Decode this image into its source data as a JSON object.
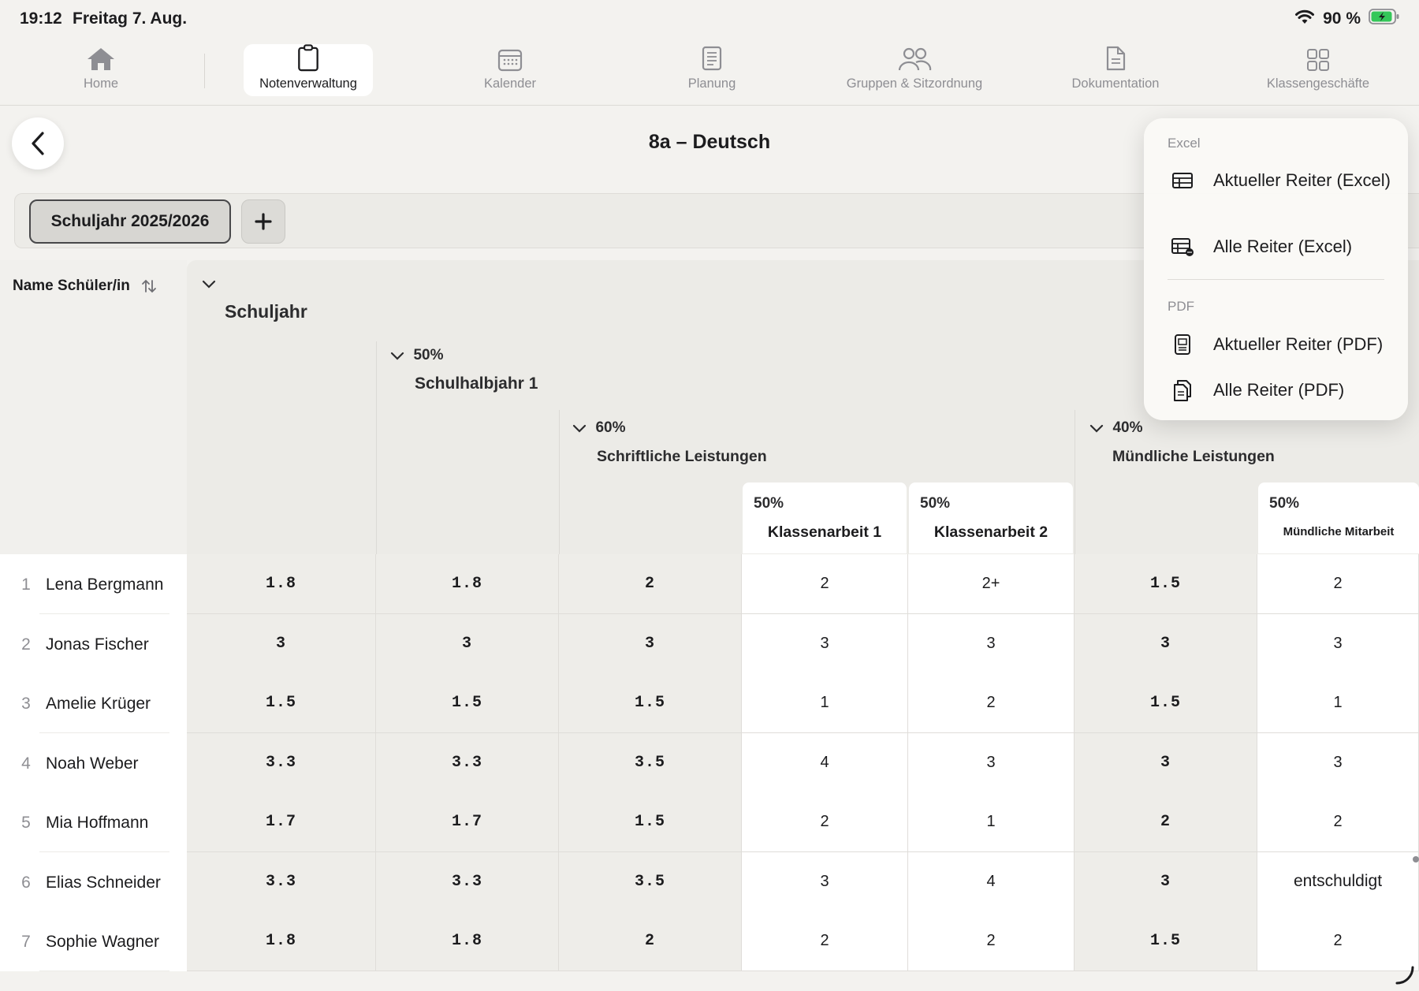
{
  "status": {
    "time": "19:12",
    "date": "Freitag 7. Aug.",
    "battery": "90 %"
  },
  "tabs": [
    {
      "label": "Home",
      "icon": "house-icon"
    },
    {
      "label": "Notenverwaltung",
      "icon": "clipboard-icon"
    },
    {
      "label": "Kalender",
      "icon": "calendar-icon"
    },
    {
      "label": "Planung",
      "icon": "notes-icon"
    },
    {
      "label": "Gruppen & Sitzordnung",
      "icon": "people-icon"
    },
    {
      "label": "Dokumentation",
      "icon": "document-icon"
    },
    {
      "label": "Klassengeschäfte",
      "icon": "grid-icon"
    }
  ],
  "header": {
    "title": "8a – Deutsch"
  },
  "tabstrip": {
    "year_tab": "Schuljahr 2025/2026"
  },
  "table": {
    "name_header": "Name Schüler/in",
    "schuljahr": {
      "title": "Schuljahr"
    },
    "halbjahr": {
      "pct": "50%",
      "title": "Schulhalbjahr 1"
    },
    "schriftlich": {
      "pct": "60%",
      "title": "Schriftliche Leistungen"
    },
    "muendlich": {
      "pct": "40%",
      "title": "Mündliche Leistungen"
    },
    "ka1": {
      "pct": "50%",
      "title": "Klassenarbeit 1"
    },
    "ka2": {
      "pct": "50%",
      "title": "Klassenarbeit 2"
    },
    "mm": {
      "pct": "50%",
      "title": "Mündliche Mitarbeit"
    },
    "rows": [
      {
        "num": "1",
        "name": "Lena Bergmann",
        "cells": [
          "1.8",
          "1.8",
          "2",
          "2",
          "2+",
          "1.5",
          "2"
        ]
      },
      {
        "num": "2",
        "name": "Jonas Fischer",
        "cells": [
          "3",
          "3",
          "3",
          "3",
          "3",
          "3",
          "3"
        ]
      },
      {
        "num": "3",
        "name": "Amelie Krüger",
        "cells": [
          "1.5",
          "1.5",
          "1.5",
          "1",
          "2",
          "1.5",
          "1"
        ]
      },
      {
        "num": "4",
        "name": "Noah Weber",
        "cells": [
          "3.3",
          "3.3",
          "3.5",
          "4",
          "3",
          "3",
          "3"
        ]
      },
      {
        "num": "5",
        "name": "Mia Hoffmann",
        "cells": [
          "1.7",
          "1.7",
          "1.5",
          "2",
          "1",
          "2",
          "2"
        ]
      },
      {
        "num": "6",
        "name": "Elias Schneider",
        "cells": [
          "3.3",
          "3.3",
          "3.5",
          "3",
          "4",
          "3",
          "entschuldigt"
        ]
      },
      {
        "num": "7",
        "name": "Sophie Wagner",
        "cells": [
          "1.8",
          "1.8",
          "2",
          "2",
          "2",
          "1.5",
          "2"
        ]
      }
    ]
  },
  "export_menu": {
    "excel_section": "Excel",
    "current_excel": "Aktueller Reiter (Excel)",
    "all_excel": "Alle Reiter (Excel)",
    "pdf_section": "PDF",
    "current_pdf": "Aktueller Reiter (PDF)",
    "all_pdf": "Alle Reiter (PDF)"
  }
}
